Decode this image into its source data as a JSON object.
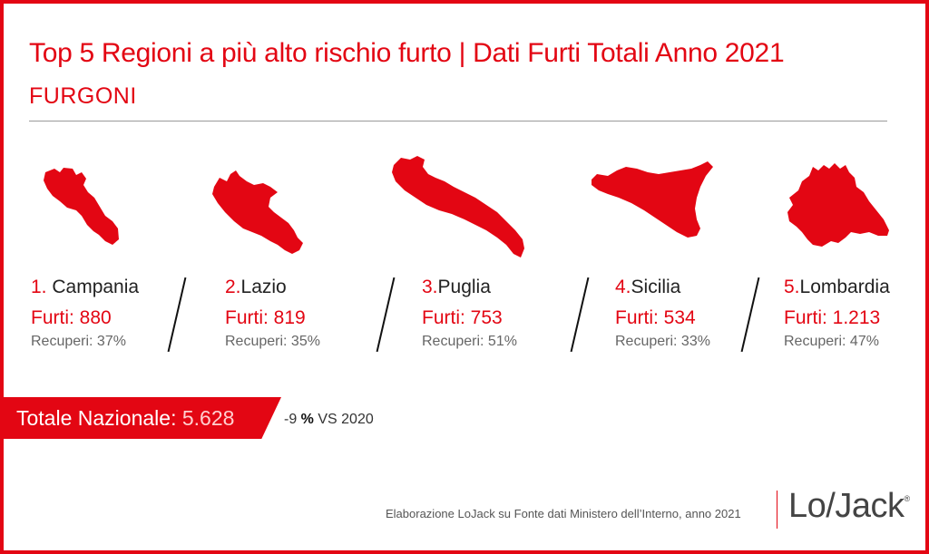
{
  "header": {
    "title": "Top 5 Regioni a più alto rischio furto | Dati Furti Totali Anno 2021",
    "subtitle": "FURGONI"
  },
  "regions": [
    {
      "rank": "1.",
      "name": "Campania",
      "furti": "Furti: 880",
      "recuperi": "Recuperi: 37%",
      "map_icon": "campania-map-icon"
    },
    {
      "rank": "2.",
      "name": "Lazio",
      "furti": "Furti: 819",
      "recuperi": "Recuperi: 35%",
      "map_icon": "lazio-map-icon"
    },
    {
      "rank": "3.",
      "name": "Puglia",
      "furti": "Furti: 753",
      "recuperi": "Recuperi: 51%",
      "map_icon": "puglia-map-icon"
    },
    {
      "rank": "4.",
      "name": "Sicilia",
      "furti": "Furti: 534",
      "recuperi": "Recuperi: 33%",
      "map_icon": "sicilia-map-icon"
    },
    {
      "rank": "5.",
      "name": "Lombardia",
      "furti": "Furti: 1.213",
      "recuperi": "Recuperi: 47%",
      "map_icon": "lombardia-map-icon"
    }
  ],
  "totale": {
    "label": "Totale Nazionale",
    "separator": ":",
    "value": "5.628",
    "delta_prefix": "-9 ",
    "delta_pct": "%",
    "delta_suffix": " VS 2020"
  },
  "footer": {
    "source": "Elaborazione LoJack su Fonte dati Ministero dell’Interno, anno 2021",
    "logo": "Lo/Jack",
    "logo_mark": "®"
  },
  "colors": {
    "brand_red": "#e30613",
    "text_dark": "#222222",
    "text_gray": "#666666"
  }
}
